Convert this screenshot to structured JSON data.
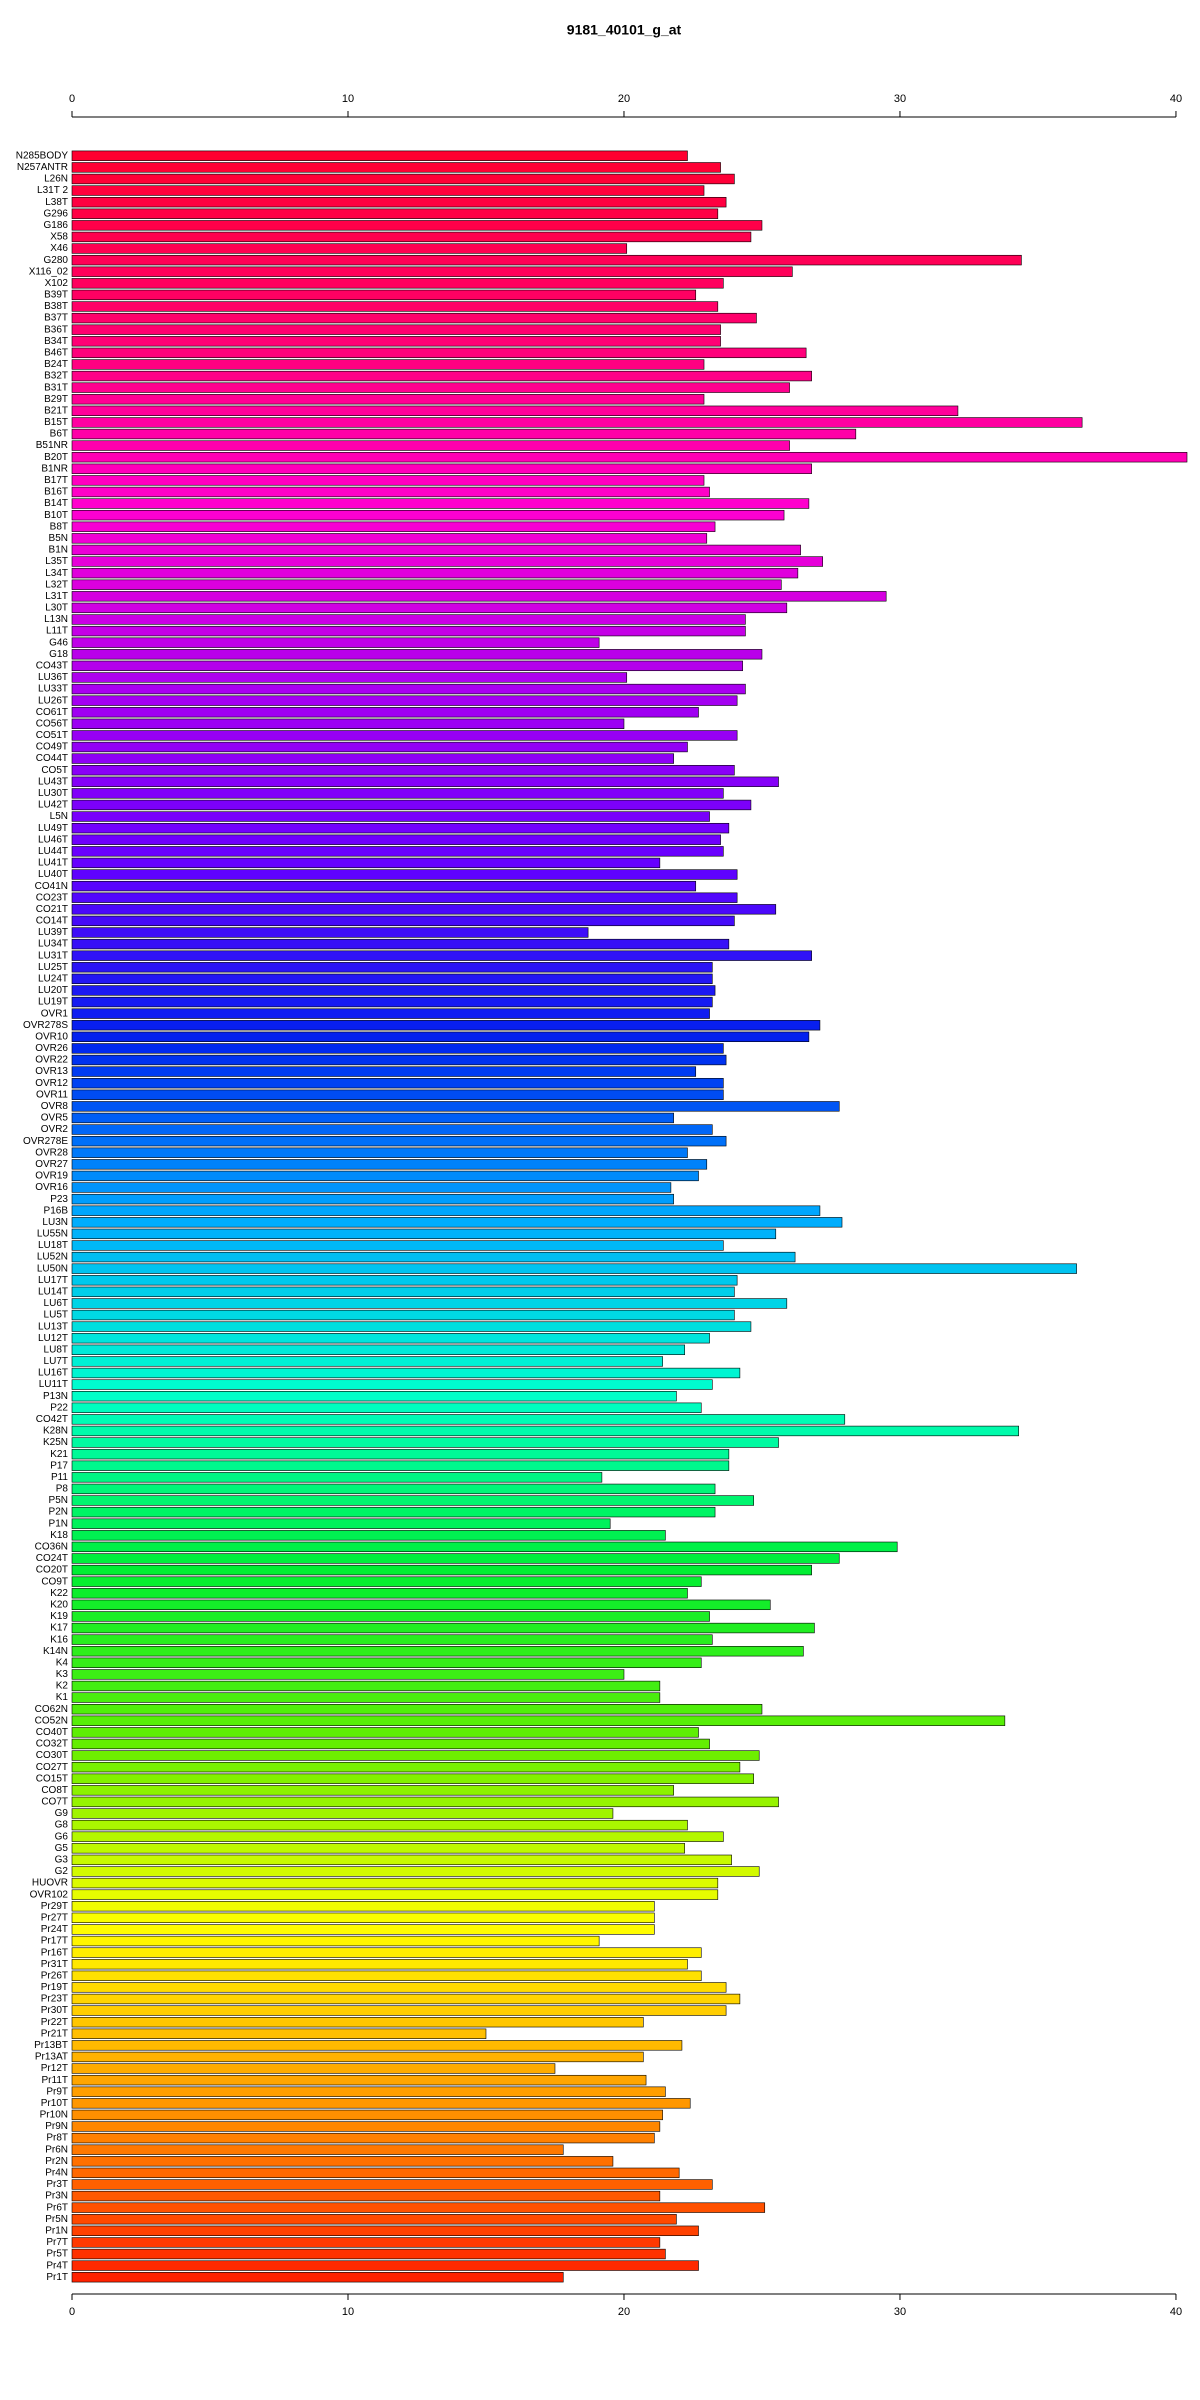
{
  "chart_data": {
    "type": "barh",
    "title": "9181_40101_g_at",
    "categories": [
      "N285BODY",
      "N257ANTR",
      "L26N",
      "L31T 2",
      "L38T",
      "G296",
      "G186",
      "X58",
      "X46",
      "G280",
      "X116_02",
      "X102",
      "B39T",
      "B38T",
      "B37T",
      "B36T",
      "B34T",
      "B46T",
      "B24T",
      "B32T",
      "B31T",
      "B29T",
      "B21T",
      "B15T",
      "B6T",
      "B51NR",
      "B20T",
      "B1NR",
      "B17T",
      "B16T",
      "B14T",
      "B10T",
      "B8T",
      "B5N",
      "B1N",
      "L35T",
      "L34T",
      "L32T",
      "L31T",
      "L30T",
      "L13N",
      "L11T",
      "G46",
      "G18",
      "CO43T",
      "LU36T",
      "LU33T",
      "LU26T",
      "CO61T",
      "CO56T",
      "CO51T",
      "CO49T",
      "CO44T",
      "CO5T",
      "LU43T",
      "LU30T",
      "LU42T",
      "L5N",
      "LU49T",
      "LU46T",
      "LU44T",
      "LU41T",
      "LU40T",
      "CO41N",
      "CO23T",
      "CO21T",
      "CO14T",
      "LU39T",
      "LU34T",
      "LU31T",
      "LU25T",
      "LU24T",
      "LU20T",
      "LU19T",
      "OVR1",
      "OVR278S",
      "OVR10",
      "OVR26",
      "OVR22",
      "OVR13",
      "OVR12",
      "OVR11",
      "OVR8",
      "OVR5",
      "OVR2",
      "OVR278E",
      "OVR28",
      "OVR27",
      "OVR19",
      "OVR16",
      "P23",
      "P16B",
      "LU3N",
      "LU55N",
      "LU18T",
      "LU52N",
      "LU50N",
      "LU17T",
      "LU14T",
      "LU6T",
      "LU5T",
      "LU13T",
      "LU12T",
      "LU8T",
      "LU7T",
      "LU16T",
      "LU11T",
      "P13N",
      "P22",
      "CO42T",
      "K28N",
      "K25N",
      "K21",
      "P17",
      "P11",
      "P8",
      "P5N",
      "P2N",
      "P1N",
      "K18",
      "CO36N",
      "CO24T",
      "CO20T",
      "CO9T",
      "K22",
      "K20",
      "K19",
      "K17",
      "K16",
      "K14N",
      "K4",
      "K3",
      "K2",
      "K1",
      "CO62N",
      "CO52N",
      "CO40T",
      "CO32T",
      "CO30T",
      "CO27T",
      "CO15T",
      "CO8T",
      "CO7T",
      "G9",
      "G8",
      "G6",
      "G5",
      "G3",
      "G2",
      "HUOVR",
      "OVR102",
      "Pr29T",
      "Pr27T",
      "Pr24T",
      "Pr17T",
      "Pr16T",
      "Pr31T",
      "Pr26T",
      "Pr19T",
      "Pr23T",
      "Pr30T",
      "Pr22T",
      "Pr21T",
      "Pr13BT",
      "Pr13AT",
      "Pr12T",
      "Pr11T",
      "Pr9T",
      "Pr10T",
      "Pr10N",
      "Pr9N",
      "Pr8T",
      "Pr6N",
      "Pr2N",
      "Pr4N",
      "Pr3T",
      "Pr3N",
      "Pr6T",
      "Pr5N",
      "Pr1N",
      "Pr7T",
      "Pr5T",
      "Pr4T",
      "Pr1T"
    ],
    "values": [
      22.3,
      23.5,
      24.0,
      22.9,
      23.7,
      23.4,
      25.0,
      24.6,
      20.1,
      34.4,
      26.1,
      23.6,
      22.6,
      23.4,
      24.8,
      23.5,
      23.5,
      26.6,
      22.9,
      26.8,
      26.0,
      22.9,
      32.1,
      36.6,
      28.4,
      26.0,
      40.4,
      26.8,
      22.9,
      23.1,
      26.7,
      25.8,
      23.3,
      23.0,
      26.4,
      27.2,
      26.3,
      25.7,
      29.5,
      25.9,
      24.4,
      24.4,
      19.1,
      25.0,
      24.3,
      20.1,
      24.4,
      24.1,
      22.7,
      20.0,
      24.1,
      22.3,
      21.8,
      24.0,
      25.6,
      23.6,
      24.6,
      23.1,
      23.8,
      23.5,
      23.6,
      21.3,
      24.1,
      22.6,
      24.1,
      25.5,
      24.0,
      18.7,
      23.8,
      26.8,
      23.2,
      23.2,
      23.3,
      23.2,
      23.1,
      27.1,
      26.7,
      23.6,
      23.7,
      22.6,
      23.6,
      23.6,
      27.8,
      21.8,
      23.2,
      23.7,
      22.3,
      23.0,
      22.7,
      21.7,
      21.8,
      27.1,
      27.9,
      25.5,
      23.6,
      26.2,
      36.4,
      24.1,
      24.0,
      25.9,
      24.0,
      24.6,
      23.1,
      22.2,
      21.4,
      24.2,
      23.2,
      21.9,
      22.8,
      28.0,
      34.3,
      25.6,
      23.8,
      23.8,
      19.2,
      23.3,
      24.7,
      23.3,
      19.5,
      21.5,
      29.9,
      27.8,
      26.8,
      22.8,
      22.3,
      25.3,
      23.1,
      26.9,
      23.2,
      26.5,
      22.8,
      20.0,
      21.3,
      21.3,
      25.0,
      33.8,
      22.7,
      23.1,
      24.9,
      24.2,
      24.7,
      21.8,
      25.6,
      19.6,
      22.3,
      23.6,
      22.2,
      23.9,
      24.9,
      23.4,
      23.4,
      21.1,
      21.1,
      21.1,
      19.1,
      22.8,
      22.3,
      22.8,
      23.7,
      24.2,
      23.7,
      20.7,
      15.0,
      22.1,
      20.7,
      17.5,
      20.8,
      21.5,
      22.4,
      21.4,
      21.3,
      21.1,
      17.8,
      19.6,
      22.0,
      23.2,
      21.3,
      25.1,
      21.9,
      22.7,
      21.3,
      21.5,
      22.7,
      17.8
    ],
    "color_stops": [
      "#ff0030",
      "#ff0070",
      "#ff00d0",
      "#aa00f0",
      "#6600ff",
      "#0022ee",
      "#00aaff",
      "#00ffcc",
      "#00ee33",
      "#66ee00",
      "#ffff00",
      "#ff9900",
      "#ff2200"
    ],
    "xlim": [
      0,
      40.4
    ],
    "xticks": [
      0,
      10,
      20,
      30,
      40
    ]
  }
}
